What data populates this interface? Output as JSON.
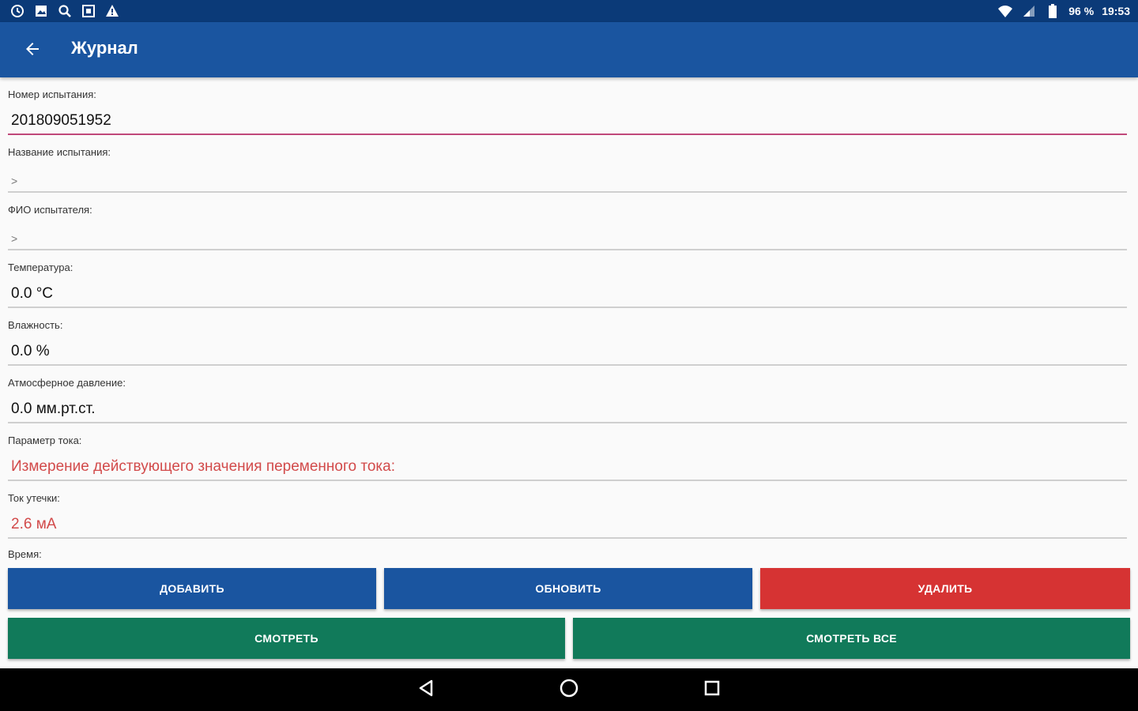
{
  "status_bar": {
    "battery": "96 %",
    "time": "19:53"
  },
  "app_bar": {
    "title": "Журнал"
  },
  "fields": [
    {
      "label": "Номер испытания:",
      "value": "201809051952"
    },
    {
      "label": "Название испытания:",
      "value": ">"
    },
    {
      "label": "ФИО испытателя:",
      "value": ">"
    },
    {
      "label": "Температура:",
      "value": "0.0 °C"
    },
    {
      "label": "Влажность:",
      "value": "0.0 %"
    },
    {
      "label": "Атмосферное давление:",
      "value": "0.0 мм.рт.ст."
    },
    {
      "label": "Параметр тока:",
      "value": "Измерение действующего значения переменного тока:"
    },
    {
      "label": "Ток утечки:",
      "value": "2.6 мА"
    }
  ],
  "time_label": "Время:",
  "buttons": {
    "add": "ДОБАВИТЬ",
    "update": "ОБНОВИТЬ",
    "delete": "УДАЛИТЬ",
    "view": "СМОТРЕТЬ",
    "view_all": "СМОТРЕТЬ ВСЕ"
  },
  "colors": {
    "status_bar": "#0b3a78",
    "app_bar": "#1a55a0",
    "button_blue": "#1a55a0",
    "button_red": "#d63333",
    "button_green": "#117a5a",
    "accent_red_text": "#d24a4a",
    "active_underline": "#c0487a"
  },
  "icons": {
    "status_left": [
      "alarm-icon",
      "image-icon",
      "search-icon",
      "screenshot-icon",
      "warning-icon"
    ],
    "status_right": [
      "wifi-icon",
      "signal-icon",
      "battery-icon"
    ],
    "nav": [
      "back-triangle-icon",
      "home-circle-icon",
      "recents-square-icon"
    ]
  }
}
